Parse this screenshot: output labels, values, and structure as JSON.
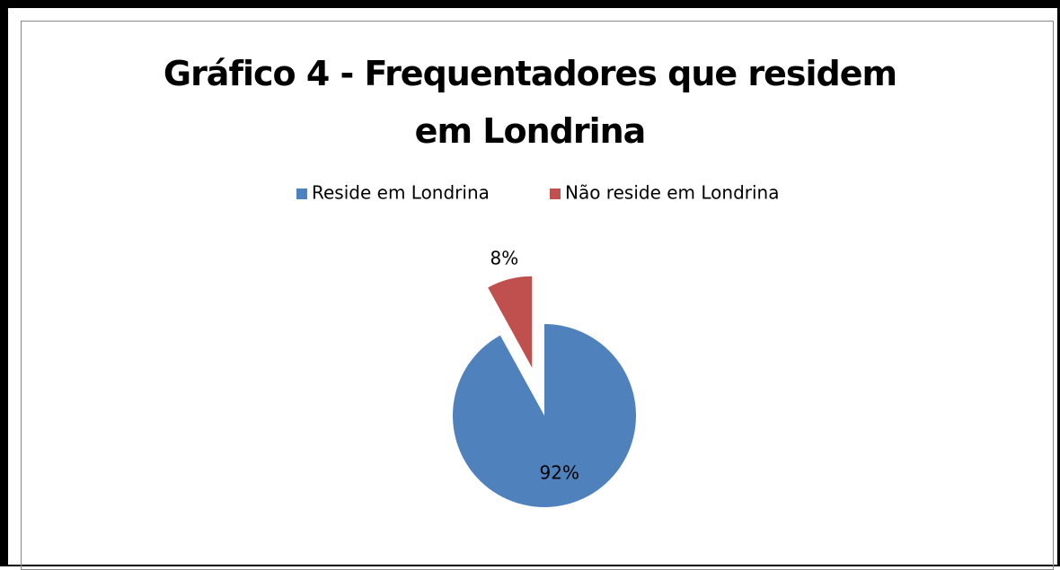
{
  "chart_data": {
    "type": "pie",
    "title": "Gráfico 4 - Frequentadores que residem em Londrina",
    "categories": [
      "Reside em Londrina",
      "Não reside em Londrina"
    ],
    "values": [
      92,
      8
    ],
    "value_labels": [
      "92%",
      "8%"
    ],
    "colors": [
      "#4f81bd",
      "#c0504d"
    ],
    "legend": "top"
  }
}
